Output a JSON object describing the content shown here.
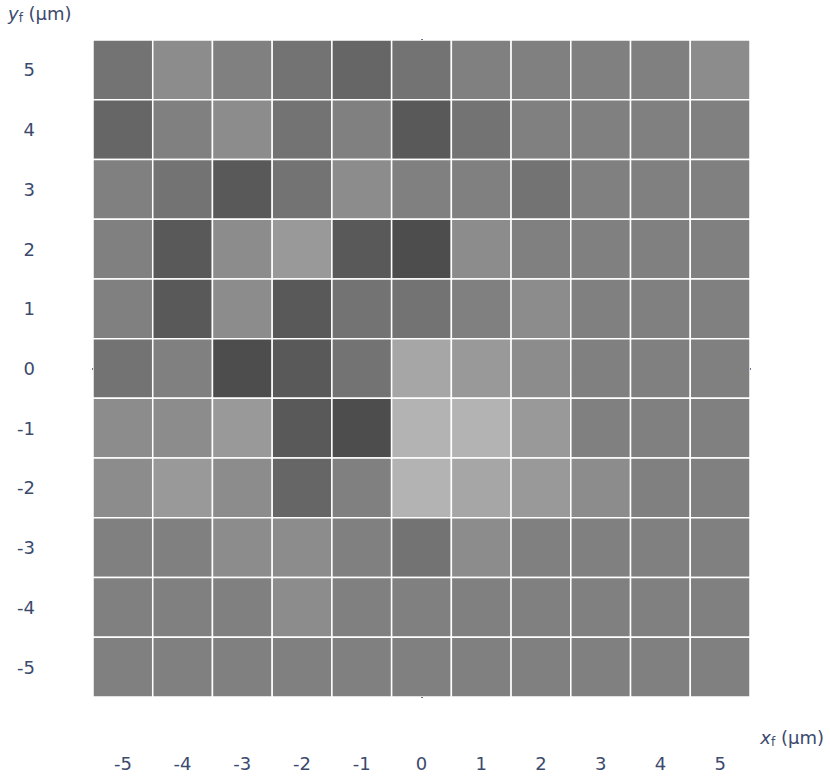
{
  "chart_data": {
    "type": "heatmap",
    "xlabel": "xf (µm)",
    "ylabel": "yf (µm)",
    "x": [
      -5,
      -4,
      -3,
      -2,
      -1,
      0,
      1,
      2,
      3,
      4,
      5
    ],
    "y": [
      5,
      4,
      3,
      2,
      1,
      0,
      -1,
      -2,
      -3,
      -4,
      -5
    ],
    "values": [
      [
        0.45,
        0.55,
        0.5,
        0.45,
        0.4,
        0.45,
        0.5,
        0.5,
        0.5,
        0.5,
        0.55
      ],
      [
        0.4,
        0.5,
        0.55,
        0.45,
        0.5,
        0.35,
        0.45,
        0.5,
        0.5,
        0.5,
        0.5
      ],
      [
        0.5,
        0.45,
        0.35,
        0.45,
        0.55,
        0.5,
        0.5,
        0.45,
        0.5,
        0.5,
        0.5
      ],
      [
        0.5,
        0.35,
        0.55,
        0.6,
        0.35,
        0.3,
        0.55,
        0.5,
        0.5,
        0.5,
        0.5
      ],
      [
        0.5,
        0.35,
        0.55,
        0.35,
        0.45,
        0.45,
        0.5,
        0.55,
        0.5,
        0.5,
        0.5
      ],
      [
        0.45,
        0.5,
        0.3,
        0.35,
        0.45,
        0.65,
        0.6,
        0.55,
        0.5,
        0.5,
        0.5
      ],
      [
        0.55,
        0.55,
        0.6,
        0.35,
        0.3,
        0.7,
        0.7,
        0.6,
        0.5,
        0.5,
        0.5
      ],
      [
        0.55,
        0.6,
        0.55,
        0.4,
        0.5,
        0.7,
        0.65,
        0.6,
        0.55,
        0.5,
        0.5
      ],
      [
        0.5,
        0.5,
        0.55,
        0.55,
        0.5,
        0.45,
        0.55,
        0.5,
        0.5,
        0.5,
        0.5
      ],
      [
        0.5,
        0.5,
        0.5,
        0.55,
        0.5,
        0.5,
        0.5,
        0.5,
        0.5,
        0.5,
        0.5
      ],
      [
        0.5,
        0.5,
        0.5,
        0.5,
        0.5,
        0.5,
        0.5,
        0.5,
        0.5,
        0.5,
        0.5
      ]
    ],
    "xlim": [
      -5.5,
      5.5
    ],
    "ylim": [
      -5.5,
      5.5
    ],
    "xticks": [
      -5,
      -4,
      -3,
      -2,
      -1,
      0,
      1,
      2,
      3,
      4,
      5
    ],
    "yticks": [
      -5,
      -4,
      -3,
      -2,
      -1,
      0,
      1,
      2,
      3,
      4,
      5
    ],
    "grid": false
  }
}
